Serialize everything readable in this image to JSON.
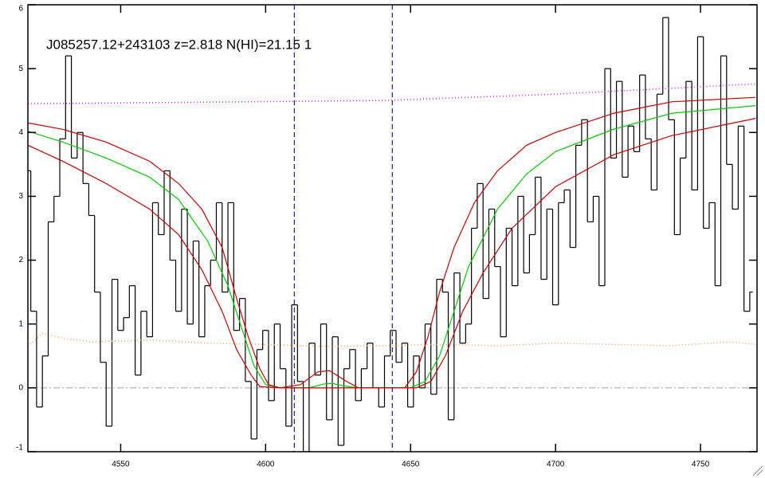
{
  "chart_data": {
    "type": "line",
    "title": "J085257.12+243103 z=2.818 N(HI)=21.15 1",
    "xlim": [
      4518,
      4769.5
    ],
    "ylim": [
      -1,
      6
    ],
    "xticks": [
      4550,
      4600,
      4650,
      4700,
      4750
    ],
    "yticks": [
      -1,
      0,
      1,
      2,
      3,
      4,
      5,
      6
    ],
    "reference_line": {
      "value": 0,
      "color": "#a0a0a0"
    },
    "vlines": {
      "values": [
        4609.9,
        4643.7
      ],
      "color": "#1a1aa0"
    },
    "series": [
      {
        "color": "#000000",
        "style": "step",
        "x": [
          4518,
          4520,
          4522,
          4524,
          4526,
          4528,
          4530,
          4532,
          4534,
          4536,
          4538,
          4540,
          4542,
          4544,
          4546,
          4548,
          4550,
          4552,
          4554,
          4556,
          4558,
          4560,
          4562,
          4564,
          4566,
          4568,
          4570,
          4572,
          4574,
          4576,
          4578,
          4580,
          4582,
          4584,
          4586,
          4588,
          4590,
          4592,
          4594,
          4596,
          4598,
          4600,
          4602,
          4604,
          4606,
          4608,
          4610,
          4612,
          4614,
          4616,
          4618,
          4620,
          4622,
          4624,
          4626,
          4628,
          4630,
          4632,
          4634,
          4636,
          4638,
          4640,
          4642,
          4644,
          4646,
          4648,
          4650,
          4652,
          4654,
          4656,
          4658,
          4660,
          4662,
          4664,
          4666,
          4668,
          4670,
          4672,
          4674,
          4676,
          4678,
          4680,
          4682,
          4684,
          4686,
          4688,
          4690,
          4692,
          4694,
          4696,
          4698,
          4700,
          4702,
          4704,
          4706,
          4708,
          4710,
          4712,
          4714,
          4716,
          4718,
          4720,
          4722,
          4724,
          4726,
          4728,
          4730,
          4732,
          4734,
          4736,
          4738,
          4740,
          4742,
          4744,
          4746,
          4748,
          4750,
          4752,
          4754,
          4756,
          4758,
          4760,
          4762,
          4764,
          4766,
          4768
        ],
        "values": [
          3.4,
          1.2,
          -0.3,
          0.5,
          2.6,
          3.0,
          3.9,
          5.2,
          3.6,
          4.0,
          3.2,
          2.7,
          1.5,
          0.4,
          -0.6,
          1.7,
          0.9,
          1.1,
          1.6,
          0.2,
          1.2,
          0.8,
          2.9,
          2.4,
          3.4,
          2.0,
          1.2,
          2.8,
          1.0,
          2.3,
          0.8,
          1.6,
          2.0,
          2.9,
          1.5,
          2.9,
          0.9,
          1.4,
          0.1,
          -0.8,
          0.6,
          0.9,
          -0.2,
          1.0,
          0.3,
          -0.6,
          1.3,
          0.1,
          -1.0,
          0.7,
          0.2,
          1.0,
          -0.5,
          0.8,
          -0.9,
          0.3,
          0.6,
          -0.2,
          0.3,
          0.7,
          0.0,
          -0.3,
          0.5,
          0.9,
          0.4,
          0.7,
          -0.3,
          0.5,
          0.0,
          1.0,
          -0.1,
          1.7,
          1.5,
          -0.5,
          1.8,
          0.7,
          1.0,
          2.5,
          3.2,
          1.4,
          2.8,
          1.9,
          0.8,
          2.5,
          1.6,
          3.0,
          1.8,
          2.4,
          3.3,
          1.7,
          2.8,
          1.3,
          2.9,
          3.1,
          2.2,
          3.8,
          4.2,
          2.6,
          3.0,
          1.6,
          5.0,
          3.6,
          4.8,
          3.3,
          4.1,
          3.7,
          4.9,
          3.9,
          3.1,
          4.6,
          5.8,
          4.2,
          2.4,
          3.6,
          4.8,
          3.1,
          5.5,
          2.5,
          2.9,
          1.6,
          5.2,
          3.5,
          2.8,
          4.1,
          1.2,
          1.5
        ]
      },
      {
        "color": "#ff9a5a",
        "style": "dotted",
        "x": [
          4518,
          4523,
          4530,
          4540,
          4560,
          4580,
          4600,
          4620,
          4640,
          4660,
          4680,
          4700,
          4720,
          4740,
          4760,
          4769
        ],
        "values": [
          0.65,
          0.85,
          0.78,
          0.72,
          0.75,
          0.7,
          0.68,
          0.65,
          0.66,
          0.68,
          0.66,
          0.7,
          0.68,
          0.66,
          0.72,
          0.68
        ]
      },
      {
        "color": "#c020e0",
        "style": "dotted",
        "x": [
          4518,
          4640,
          4700,
          4769
        ],
        "values": [
          4.45,
          4.5,
          4.6,
          4.76
        ]
      },
      {
        "color": "#00cc00",
        "style": "solid",
        "x": [
          4518,
          4530,
          4545,
          4560,
          4570,
          4580,
          4587,
          4592,
          4596,
          4600,
          4605,
          4615,
          4620,
          4623,
          4627,
          4632,
          4650,
          4655,
          4660,
          4665,
          4670,
          4680,
          4690,
          4700,
          4720,
          4740,
          4769
        ],
        "values": [
          4.02,
          3.85,
          3.6,
          3.3,
          2.95,
          2.3,
          1.6,
          0.9,
          0.35,
          0.05,
          0,
          0,
          0.06,
          0.07,
          0.03,
          0,
          0,
          0.1,
          0.5,
          1.2,
          1.9,
          2.8,
          3.35,
          3.7,
          4.05,
          4.3,
          4.42
        ]
      },
      {
        "color": "#cc0000",
        "style": "solid",
        "x": [
          4518,
          4530,
          4545,
          4560,
          4570,
          4578,
          4585,
          4590,
          4594,
          4598,
          4601,
          4605,
          4612,
          4618,
          4622,
          4628,
          4632,
          4648,
          4652,
          4656,
          4660,
          4665,
          4672,
          4680,
          4690,
          4700,
          4720,
          4740,
          4769
        ],
        "values": [
          4.15,
          4.05,
          3.85,
          3.55,
          3.2,
          2.8,
          2.2,
          1.4,
          0.8,
          0.3,
          0.05,
          0,
          0.05,
          0.25,
          0.27,
          0.1,
          0,
          0,
          0.25,
          0.8,
          1.5,
          2.2,
          2.9,
          3.4,
          3.8,
          4.0,
          4.3,
          4.48,
          4.55
        ]
      },
      {
        "color": "#cc0000",
        "style": "solid",
        "x": [
          4518,
          4530,
          4545,
          4560,
          4570,
          4578,
          4585,
          4590,
          4595,
          4598,
          4605,
          4652,
          4657,
          4662,
          4668,
          4675,
          4685,
          4700,
          4720,
          4740,
          4769
        ],
        "values": [
          3.8,
          3.55,
          3.2,
          2.8,
          2.4,
          1.85,
          1.2,
          0.6,
          0.2,
          0.02,
          0,
          0,
          0.1,
          0.5,
          1.2,
          1.8,
          2.5,
          3.15,
          3.65,
          3.95,
          4.22
        ]
      }
    ]
  }
}
